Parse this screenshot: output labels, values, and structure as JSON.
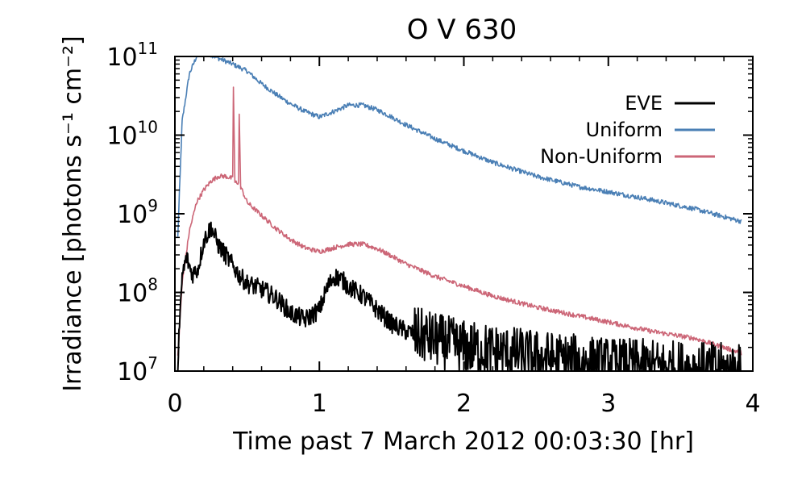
{
  "chart_data": {
    "type": "line",
    "title": "O V 630",
    "xlabel": "Time past 7 March 2012 00:03:30 [hr]",
    "ylabel": "Irradiance [photons s⁻¹ cm⁻²]",
    "xlim": [
      0,
      4
    ],
    "ylim": [
      10000000.0,
      100000000000.0
    ],
    "yscale": "log",
    "x_ticks": [
      "0",
      "1",
      "2",
      "3",
      "4"
    ],
    "y_ticks": [
      {
        "base": "10",
        "exp": "7"
      },
      {
        "base": "10",
        "exp": "8"
      },
      {
        "base": "10",
        "exp": "9"
      },
      {
        "base": "10",
        "exp": "10"
      },
      {
        "base": "10",
        "exp": "11"
      }
    ],
    "grid": false,
    "legend_position": "top-right",
    "series": [
      {
        "name": "EVE",
        "color": "#000000",
        "noisy": true,
        "points": [
          [
            0.02,
            12000000.0
          ],
          [
            0.05,
            160000000.0
          ],
          [
            0.08,
            280000000.0
          ],
          [
            0.12,
            170000000.0
          ],
          [
            0.16,
            200000000.0
          ],
          [
            0.2,
            450000000.0
          ],
          [
            0.25,
            680000000.0
          ],
          [
            0.3,
            400000000.0
          ],
          [
            0.35,
            300000000.0
          ],
          [
            0.4,
            220000000.0
          ],
          [
            0.45,
            160000000.0
          ],
          [
            0.5,
            130000000.0
          ],
          [
            0.6,
            110000000.0
          ],
          [
            0.7,
            85000000.0
          ],
          [
            0.8,
            55000000.0
          ],
          [
            0.9,
            45000000.0
          ],
          [
            1.0,
            60000000.0
          ],
          [
            1.05,
            110000000.0
          ],
          [
            1.1,
            160000000.0
          ],
          [
            1.15,
            150000000.0
          ],
          [
            1.2,
            120000000.0
          ],
          [
            1.3,
            90000000.0
          ],
          [
            1.4,
            60000000.0
          ],
          [
            1.5,
            40000000.0
          ],
          [
            1.6,
            32000000.0
          ],
          [
            1.8,
            25000000.0
          ],
          [
            2.0,
            20000000.0
          ],
          [
            2.2,
            18000000.0
          ],
          [
            2.5,
            15000000.0
          ],
          [
            3.0,
            12000000.0
          ],
          [
            3.5,
            11000000.0
          ],
          [
            3.92,
            10000000.0
          ]
        ]
      },
      {
        "name": "Uniform",
        "color": "#4a7fb5",
        "noisy": true,
        "points": [
          [
            0.02,
            500000000.0
          ],
          [
            0.05,
            15000000000.0
          ],
          [
            0.1,
            60000000000.0
          ],
          [
            0.15,
            100000000000.0
          ],
          [
            0.2,
            115000000000.0
          ],
          [
            0.25,
            105000000000.0
          ],
          [
            0.3,
            95000000000.0
          ],
          [
            0.4,
            80000000000.0
          ],
          [
            0.5,
            65000000000.0
          ],
          [
            0.6,
            45000000000.0
          ],
          [
            0.7,
            33000000000.0
          ],
          [
            0.8,
            25000000000.0
          ],
          [
            0.9,
            20000000000.0
          ],
          [
            1.0,
            17000000000.0
          ],
          [
            1.1,
            20000000000.0
          ],
          [
            1.2,
            24000000000.0
          ],
          [
            1.3,
            24000000000.0
          ],
          [
            1.4,
            21000000000.0
          ],
          [
            1.5,
            17000000000.0
          ],
          [
            1.6,
            13500000000.0
          ],
          [
            1.8,
            9000000000.0
          ],
          [
            2.0,
            6300000000.0
          ],
          [
            2.2,
            4500000000.0
          ],
          [
            2.5,
            3000000000.0
          ],
          [
            2.8,
            2200000000.0
          ],
          [
            3.0,
            1900000000.0
          ],
          [
            3.3,
            1500000000.0
          ],
          [
            3.6,
            1150000000.0
          ],
          [
            3.92,
            800000000.0
          ]
        ]
      },
      {
        "name": "Non-Uniform",
        "color": "#cc6677",
        "noisy": true,
        "points": [
          [
            0.02,
            15000000.0
          ],
          [
            0.05,
            130000000.0
          ],
          [
            0.1,
            600000000.0
          ],
          [
            0.15,
            1400000000.0
          ],
          [
            0.2,
            2000000000.0
          ],
          [
            0.25,
            2600000000.0
          ],
          [
            0.3,
            3000000000.0
          ],
          [
            0.35,
            3000000000.0
          ],
          [
            0.4,
            2800000000.0
          ],
          [
            0.405,
            42000000000.0
          ],
          [
            0.415,
            2500000000.0
          ],
          [
            0.44,
            2500000000.0
          ],
          [
            0.445,
            19000000000.0
          ],
          [
            0.455,
            2200000000.0
          ],
          [
            0.5,
            1400000000.0
          ],
          [
            0.6,
            950000000.0
          ],
          [
            0.7,
            650000000.0
          ],
          [
            0.8,
            470000000.0
          ],
          [
            0.9,
            370000000.0
          ],
          [
            1.0,
            330000000.0
          ],
          [
            1.1,
            370000000.0
          ],
          [
            1.2,
            410000000.0
          ],
          [
            1.3,
            410000000.0
          ],
          [
            1.4,
            360000000.0
          ],
          [
            1.5,
            290000000.0
          ],
          [
            1.6,
            230000000.0
          ],
          [
            1.8,
            160000000.0
          ],
          [
            2.0,
            120000000.0
          ],
          [
            2.2,
            90000000.0
          ],
          [
            2.5,
            65000000.0
          ],
          [
            2.8,
            50000000.0
          ],
          [
            3.0,
            42000000.0
          ],
          [
            3.3,
            32000000.0
          ],
          [
            3.6,
            26000000.0
          ],
          [
            3.92,
            17000000.0
          ]
        ]
      }
    ]
  }
}
